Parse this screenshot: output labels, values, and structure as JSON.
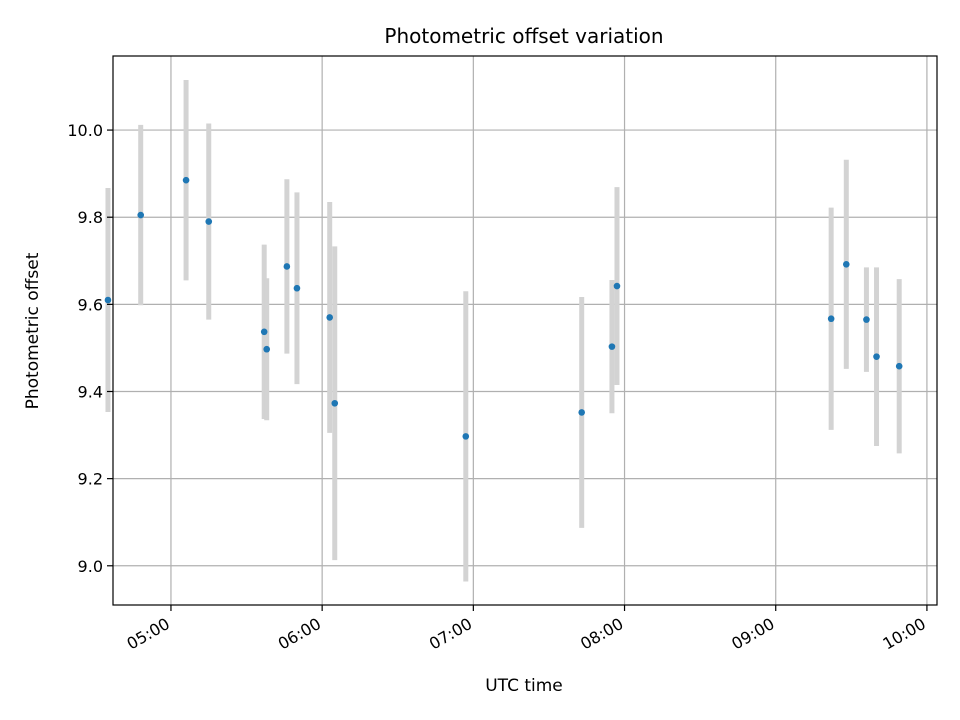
{
  "chart_data": {
    "type": "scatter",
    "title": "Photometric offset variation",
    "xlabel": "UTC time",
    "ylabel": "Photometric offset",
    "x_tick_labels": [
      "05:00",
      "06:00",
      "07:00",
      "08:00",
      "09:00",
      "10:00"
    ],
    "y_tick_labels": [
      "9.0",
      "9.2",
      "9.4",
      "9.6",
      "9.8",
      "10.0"
    ],
    "y_ticks": [
      9.0,
      9.2,
      9.4,
      9.6,
      9.8,
      10.0
    ],
    "xlim": [
      "04:37",
      "10:04"
    ],
    "ylim": [
      8.91,
      10.17
    ],
    "grid": true,
    "colors": {
      "point": "#1f77b4",
      "errorbar": "#d3d3d3",
      "grid": "#b0b0b0"
    },
    "points": [
      {
        "time": "04:35",
        "y": 9.61,
        "yerr": 0.257
      },
      {
        "time": "04:48",
        "y": 9.805,
        "yerr": 0.207
      },
      {
        "time": "05:06",
        "y": 9.885,
        "yerr": 0.23
      },
      {
        "time": "05:15",
        "y": 9.79,
        "yerr": 0.225
      },
      {
        "time": "05:37",
        "y": 9.537,
        "yerr": 0.2
      },
      {
        "time": "05:38",
        "y": 9.497,
        "yerr": 0.163
      },
      {
        "time": "05:46",
        "y": 9.687,
        "yerr": 0.2
      },
      {
        "time": "05:50",
        "y": 9.637,
        "yerr": 0.22
      },
      {
        "time": "06:03",
        "y": 9.57,
        "yerr": 0.265
      },
      {
        "time": "06:05",
        "y": 9.373,
        "yerr": 0.36
      },
      {
        "time": "06:57",
        "y": 9.297,
        "yerr": 0.333
      },
      {
        "time": "07:43",
        "y": 9.352,
        "yerr": 0.265
      },
      {
        "time": "07:55",
        "y": 9.503,
        "yerr": 0.153
      },
      {
        "time": "07:57",
        "y": 9.642,
        "yerr": 0.227
      },
      {
        "time": "09:22",
        "y": 9.567,
        "yerr": 0.255
      },
      {
        "time": "09:28",
        "y": 9.692,
        "yerr": 0.24
      },
      {
        "time": "09:36",
        "y": 9.565,
        "yerr": 0.12
      },
      {
        "time": "09:40",
        "y": 9.48,
        "yerr": 0.205
      },
      {
        "time": "09:49",
        "y": 9.458,
        "yerr": 0.2
      }
    ]
  }
}
